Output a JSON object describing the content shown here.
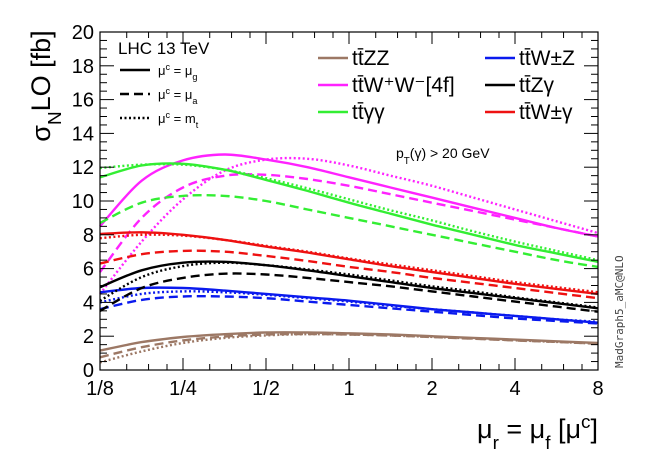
{
  "chart_data": {
    "type": "line",
    "title": "",
    "header": "LHC 13 TeV",
    "annotation": "p_T(γ) > 20 GeV",
    "side_label": "MadGraph5_aMC@NLO",
    "xlabel": "μ_r = μ_f [μ^c]",
    "ylabel": "σ_NLO [fb]",
    "x_scale": "log2",
    "xlim": [
      0.125,
      8
    ],
    "ylim": [
      0,
      20
    ],
    "x_ticks": [
      0.125,
      0.25,
      0.5,
      1,
      2,
      4,
      8
    ],
    "x_tick_labels": [
      "1/8",
      "1/4",
      "1/2",
      "1",
      "2",
      "4",
      "8"
    ],
    "y_ticks": [
      0,
      2,
      4,
      6,
      8,
      10,
      12,
      14,
      16,
      18,
      20
    ],
    "y_tick_labels": [
      "0",
      "2",
      "4",
      "6",
      "8",
      "10",
      "12",
      "14",
      "16",
      "18",
      "20"
    ],
    "legend_position": "top",
    "scale_choices": [
      {
        "style": "solid",
        "label": "μ^c = μ_g"
      },
      {
        "style": "dashed",
        "label": "μ^c = μ_a"
      },
      {
        "style": "dotted",
        "label": "μ^c = m_t"
      }
    ],
    "processes": [
      {
        "label": "tt̄ZZ",
        "color": "#9c7865"
      },
      {
        "label": "tt̄W⁺W⁻[4f]",
        "color": "#ff22ff"
      },
      {
        "label": "tt̄γγ",
        "color": "#33ee33"
      },
      {
        "label": "tt̄W±Z",
        "color": "#0a1aee"
      },
      {
        "label": "tt̄Zγ",
        "color": "#000000"
      },
      {
        "label": "tt̄W±γ",
        "color": "#ee1111"
      }
    ],
    "x": [
      0.125,
      0.177,
      0.25,
      0.354,
      0.5,
      0.707,
      1,
      1.414,
      2,
      2.828,
      4,
      5.657,
      8
    ],
    "series": [
      {
        "process": 0,
        "scale": "solid",
        "values": [
          1.15,
          1.65,
          1.95,
          2.12,
          2.22,
          2.22,
          2.17,
          2.1,
          2.0,
          1.9,
          1.8,
          1.7,
          1.6
        ]
      },
      {
        "process": 0,
        "scale": "dashed",
        "values": [
          0.75,
          1.35,
          1.75,
          1.98,
          2.1,
          2.13,
          2.1,
          2.04,
          1.95,
          1.85,
          1.75,
          1.66,
          1.55
        ]
      },
      {
        "process": 0,
        "scale": "dotted",
        "values": [
          0.45,
          1.1,
          1.6,
          1.9,
          2.05,
          2.12,
          2.1,
          2.04,
          1.96,
          1.86,
          1.76,
          1.66,
          1.56
        ]
      },
      {
        "process": 1,
        "scale": "solid",
        "values": [
          8.5,
          11.2,
          12.4,
          12.75,
          12.45,
          12.0,
          11.4,
          10.8,
          10.2,
          9.6,
          9.0,
          8.4,
          7.9
        ]
      },
      {
        "process": 1,
        "scale": "dashed",
        "values": [
          5.8,
          9.0,
          10.8,
          11.5,
          11.55,
          11.3,
          10.9,
          10.4,
          9.9,
          9.4,
          8.9,
          8.4,
          7.9
        ]
      },
      {
        "process": 1,
        "scale": "dotted",
        "values": [
          4.5,
          7.6,
          10.1,
          11.8,
          12.45,
          12.5,
          12.1,
          11.5,
          10.9,
          10.2,
          9.5,
          8.8,
          8.1
        ]
      },
      {
        "process": 2,
        "scale": "solid",
        "values": [
          11.4,
          12.1,
          12.2,
          11.85,
          11.25,
          10.6,
          9.9,
          9.25,
          8.6,
          8.0,
          7.4,
          6.9,
          6.4
        ]
      },
      {
        "process": 2,
        "scale": "dashed",
        "values": [
          8.7,
          9.9,
          10.3,
          10.3,
          10.0,
          9.5,
          9.0,
          8.5,
          8.0,
          7.5,
          7.0,
          6.5,
          6.1
        ]
      },
      {
        "process": 2,
        "scale": "dotted",
        "values": [
          11.95,
          12.15,
          12.15,
          11.85,
          11.35,
          10.75,
          10.1,
          9.45,
          8.85,
          8.2,
          7.6,
          7.05,
          6.5
        ]
      },
      {
        "process": 3,
        "scale": "solid",
        "values": [
          4.6,
          4.85,
          4.85,
          4.7,
          4.5,
          4.3,
          4.1,
          3.85,
          3.6,
          3.4,
          3.2,
          3.0,
          2.8
        ]
      },
      {
        "process": 3,
        "scale": "dashed",
        "values": [
          3.6,
          4.15,
          4.35,
          4.35,
          4.25,
          4.05,
          3.85,
          3.65,
          3.45,
          3.25,
          3.05,
          2.9,
          2.75
        ]
      },
      {
        "process": 3,
        "scale": "dotted",
        "values": [
          4.0,
          4.5,
          4.65,
          4.6,
          4.45,
          4.25,
          4.05,
          3.8,
          3.6,
          3.4,
          3.2,
          3.0,
          2.85
        ]
      },
      {
        "process": 4,
        "scale": "solid",
        "values": [
          4.9,
          5.9,
          6.35,
          6.4,
          6.2,
          5.9,
          5.55,
          5.2,
          4.85,
          4.55,
          4.25,
          3.95,
          3.65
        ]
      },
      {
        "process": 4,
        "scale": "dashed",
        "values": [
          3.5,
          4.85,
          5.45,
          5.7,
          5.65,
          5.45,
          5.2,
          4.95,
          4.65,
          4.35,
          4.05,
          3.75,
          3.45
        ]
      },
      {
        "process": 4,
        "scale": "dotted",
        "values": [
          4.1,
          5.5,
          6.15,
          6.35,
          6.2,
          5.95,
          5.65,
          5.3,
          4.95,
          4.65,
          4.3,
          4.0,
          3.7
        ]
      },
      {
        "process": 5,
        "scale": "solid",
        "values": [
          8.05,
          8.15,
          8.0,
          7.7,
          7.3,
          6.95,
          6.55,
          6.15,
          5.8,
          5.45,
          5.1,
          4.8,
          4.5
        ]
      },
      {
        "process": 5,
        "scale": "dashed",
        "values": [
          6.3,
          6.85,
          7.05,
          7.0,
          6.75,
          6.45,
          6.1,
          5.8,
          5.45,
          5.15,
          4.85,
          4.55,
          4.25
        ]
      },
      {
        "process": 5,
        "scale": "dotted",
        "values": [
          7.8,
          8.0,
          7.95,
          7.7,
          7.35,
          7.0,
          6.6,
          6.25,
          5.9,
          5.55,
          5.2,
          4.9,
          4.6
        ]
      }
    ]
  }
}
